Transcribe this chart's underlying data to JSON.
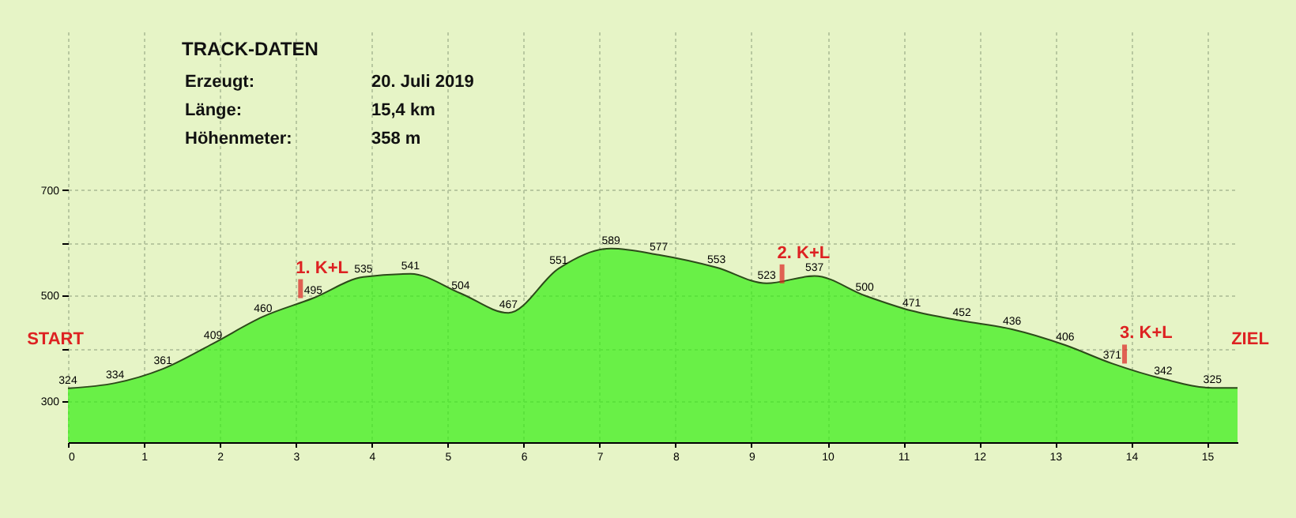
{
  "chart_data": {
    "type": "area",
    "title": "TRACK-DATEN",
    "x": [
      0,
      0.62,
      1.25,
      1.91,
      2.57,
      3.23,
      3.89,
      4.51,
      5.17,
      5.8,
      6.46,
      7.15,
      7.78,
      8.54,
      9.2,
      9.83,
      10.49,
      11.11,
      11.77,
      12.43,
      13.13,
      13.75,
      14.42,
      15.07,
      15.4
    ],
    "values": [
      324,
      334,
      361,
      409,
      460,
      495,
      535,
      541,
      504,
      467,
      551,
      589,
      577,
      553,
      523,
      537,
      500,
      471,
      452,
      436,
      406,
      371,
      342,
      325,
      325
    ],
    "value_labels": [
      "324",
      "334",
      "361",
      "409",
      "460",
      "495",
      "535",
      "541",
      "504",
      "467",
      "551",
      "589",
      "577",
      "553",
      "523",
      "537",
      "500",
      "471",
      "452",
      "436",
      "406",
      "371",
      "342",
      "325",
      null
    ],
    "color": "#33ee11",
    "xlim": [
      0,
      15.4
    ],
    "xticks": [
      0,
      1,
      2,
      3,
      4,
      5,
      6,
      7,
      8,
      9,
      10,
      11,
      12,
      13,
      14,
      15
    ],
    "ylim": [
      222,
      1000
    ],
    "yticks": [
      300,
      {
        "value": 400,
        "label": null
      },
      500,
      {
        "value": 600,
        "label": null
      },
      700
    ],
    "grid": true,
    "annotations": [
      "Erzeugt:",
      "20. Juli 2019",
      "Länge:",
      "15,4 km",
      "Höhenmeter:",
      "358 m",
      "START",
      "ZIEL",
      {
        "text": "1. K+L",
        "x": 3,
        "y": 495
      },
      {
        "text": "2. K+L",
        "x": 9.34,
        "y": 523
      },
      {
        "text": "3. K+L",
        "x": 13.85,
        "y": 371
      }
    ]
  }
}
